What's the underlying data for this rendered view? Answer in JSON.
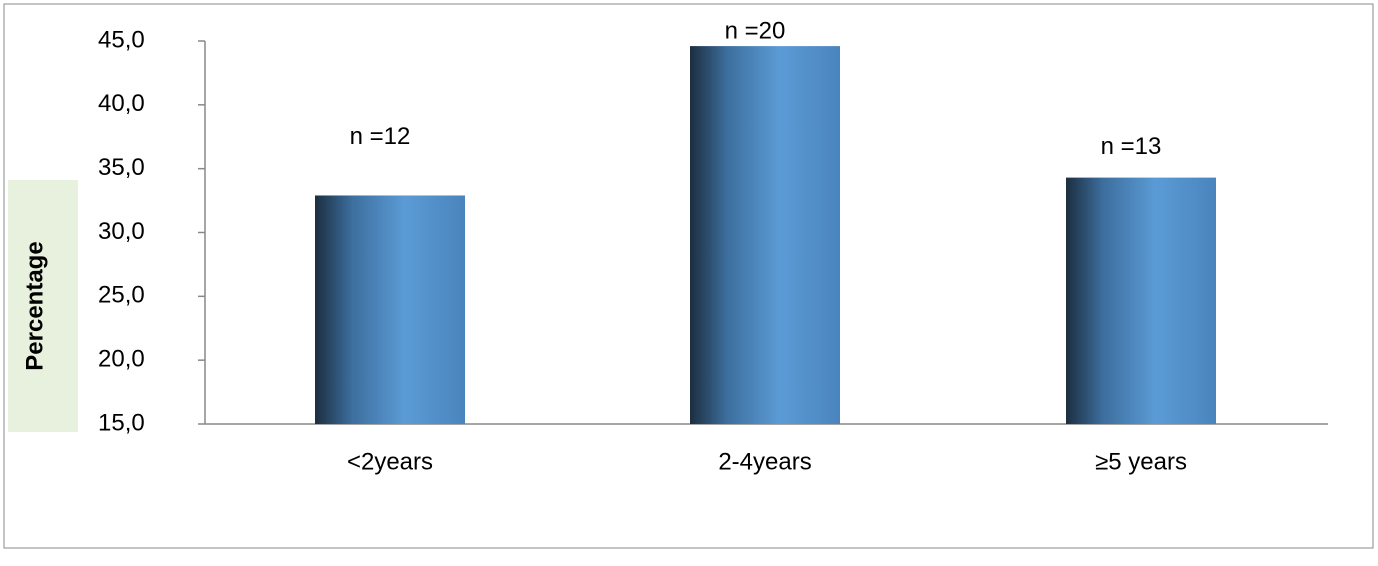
{
  "chart_data": {
    "type": "bar",
    "y_label": "Percentage",
    "categories": [
      "<2years",
      "2-4years",
      "≥5 years"
    ],
    "values": [
      32.9,
      44.6,
      34.3
    ],
    "annotations": [
      "n =12",
      "n =20",
      "n =13"
    ],
    "color": "#5b9bd5",
    "ylim": [
      15,
      45
    ],
    "yticks": [
      {
        "value": 15,
        "label": "15,0"
      },
      {
        "value": 20,
        "label": "20,0"
      },
      {
        "value": 25,
        "label": "25,0"
      },
      {
        "value": 30,
        "label": "30,0"
      },
      {
        "value": 35,
        "label": "35,0"
      },
      {
        "value": 40,
        "label": "40,0"
      },
      {
        "value": 45,
        "label": "45,0"
      }
    ]
  }
}
